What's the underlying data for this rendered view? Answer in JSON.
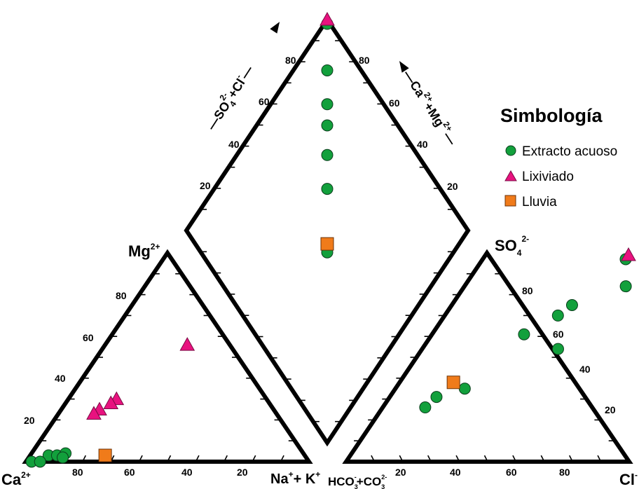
{
  "chart_data": {
    "type": "piper",
    "labels": {
      "cation_mg": "Mg",
      "cation_mg_sup": "2+",
      "cation_ca": "Ca",
      "cation_ca_sup": "2+",
      "cation_na": "Na",
      "cation_na_sup": "+",
      "cation_na_plus": "+ K",
      "cation_k_sup": "+",
      "anion_so4": "SO",
      "anion_so4_sub": "4",
      "anion_so4_sup": "2-",
      "anion_hco3": "HCO",
      "anion_hco3_sub": "3",
      "anion_hco3_sup": "-",
      "anion_co3": "+CO",
      "anion_co3_sub": "3",
      "anion_co3_sup": "2-",
      "anion_cl": "Cl",
      "anion_cl_sup": "-",
      "diamond_left_so4": "SO",
      "diamond_left_sub": "4",
      "diamond_left_sup": "2-",
      "diamond_left_rest": "+Cl",
      "diamond_left_cl_sup": "-",
      "diamond_right_ca": "Ca",
      "diamond_right_ca_sup": "2+",
      "diamond_right_mg": "+Mg",
      "diamond_right_mg_sup": "2+"
    },
    "tick_labels": {
      "cation_left": [
        "20",
        "40",
        "60",
        "80"
      ],
      "cation_bottom": [
        "80",
        "60",
        "40",
        "20"
      ],
      "anion_bottom": [
        "20",
        "40",
        "60",
        "80"
      ],
      "anion_right": [
        "20",
        "40",
        "60",
        "80"
      ],
      "diamond_left": [
        "20",
        "40",
        "60",
        "80"
      ],
      "diamond_right": [
        "80",
        "60",
        "40",
        "20"
      ]
    },
    "legend": {
      "title": "Simbología",
      "position": "right",
      "items": [
        {
          "label": "Extracto acuoso",
          "shape": "circle",
          "color": "#12a03c"
        },
        {
          "label": "Lixiviado",
          "shape": "triangle",
          "color": "#e8127f"
        },
        {
          "label": "Lluvia",
          "shape": "square",
          "color": "#f07b1a"
        }
      ]
    },
    "series": [
      {
        "name": "Extracto acuoso",
        "shape": "circle",
        "color": "#12a03c",
        "cation_mg_pct": [
          3,
          0,
          0,
          3,
          4,
          2
        ],
        "cation_nak_pct": [
          5,
          2,
          5,
          8,
          10,
          11
        ],
        "anion_so4_pct": [
          97,
          84,
          75,
          70,
          61,
          54,
          35,
          31,
          26
        ],
        "anion_cl_pct": [
          2,
          15,
          5,
          5,
          2,
          21,
          7,
          1,
          2
        ],
        "diamond_so4cl_pct": [
          99,
          88,
          80,
          75,
          68,
          60,
          47,
          45
        ]
      },
      {
        "name": "Lixiviado",
        "shape": "triangle",
        "color": "#e8127f",
        "cation_mg_pct": [
          56,
          30,
          28,
          25,
          23
        ],
        "cation_nak_pct": [
          1,
          2,
          2,
          1,
          1
        ],
        "anion_so4_pct": [
          99
        ],
        "anion_cl_pct": [
          1
        ],
        "diamond_so4cl_pct": [
          100
        ]
      },
      {
        "name": "Lluvia",
        "shape": "square",
        "color": "#f07b1a",
        "cation_mg_pct": [
          3
        ],
        "cation_nak_pct": [
          25
        ],
        "anion_so4_pct": [
          38
        ],
        "anion_cl_pct": [
          0
        ],
        "diamond_so4cl_pct": [
          47
        ]
      }
    ]
  }
}
